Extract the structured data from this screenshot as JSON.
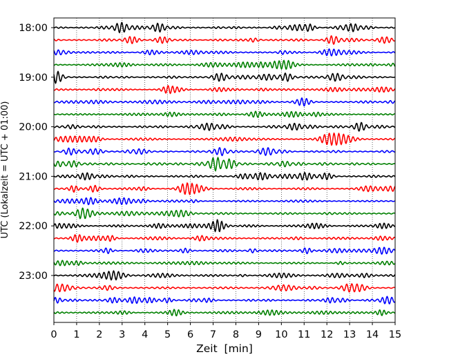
{
  "chart_data": {
    "type": "line",
    "title": "",
    "xlabel": "Zeit  [min]",
    "ylabel": "UTC (Lokalzeit = UTC + 01:00)",
    "xlim": [
      0,
      15
    ],
    "xticks": [
      0,
      1,
      2,
      3,
      4,
      5,
      6,
      7,
      8,
      9,
      10,
      11,
      12,
      13,
      14,
      15
    ],
    "x_grid": true,
    "y_grid": false,
    "trace_interval_min": 15,
    "first_trace": "18:00",
    "last_trace": "23:45",
    "y_tick_labels": [
      "18:00",
      "19:00",
      "20:00",
      "21:00",
      "22:00",
      "23:00"
    ],
    "trace_colors": [
      "#000000",
      "#ff0000",
      "#0000ff",
      "#008000"
    ],
    "traces": [
      "18:00",
      "18:15",
      "18:30",
      "18:45",
      "19:00",
      "19:15",
      "19:30",
      "19:45",
      "20:00",
      "20:15",
      "20:30",
      "20:45",
      "21:00",
      "21:15",
      "21:30",
      "21:45",
      "22:00",
      "22:15",
      "22:30",
      "22:45",
      "23:00",
      "23:15",
      "23:30",
      "23:45"
    ]
  }
}
